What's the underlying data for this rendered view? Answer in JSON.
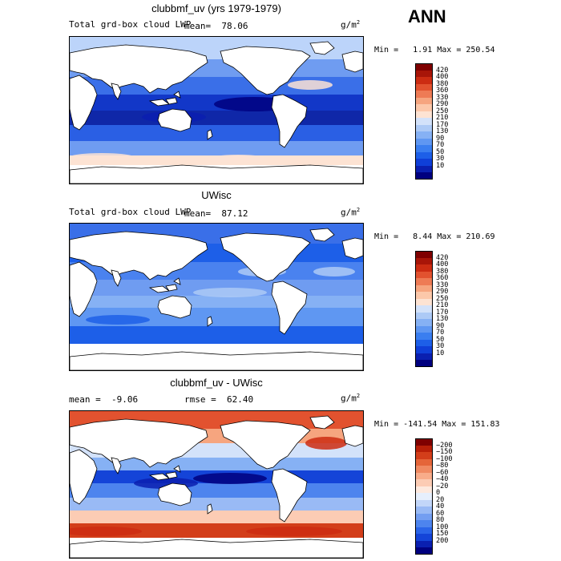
{
  "season": "ANN",
  "panels": [
    {
      "title": "clubbmf_uv (yrs 1979-1979)",
      "left_label": "Total grd-box cloud LWP",
      "stat_label": "mean=  78.06",
      "units_base": "g/m",
      "units_sup": "2",
      "minmax": "Min =   1.91 Max = 250.54",
      "palette": "model",
      "colorbar": {
        "colors": [
          "#00007f",
          "#0a1fb0",
          "#0f3fd8",
          "#1d5fe8",
          "#3a7ef0",
          "#5f97f2",
          "#86b1f4",
          "#adcaf6",
          "#d3e2fa",
          "#fde3d3",
          "#fcc8aa",
          "#f6a57f",
          "#ee7b55",
          "#e2522f",
          "#cc2c12",
          "#a81508",
          "#7f0000"
        ],
        "labels": [
          "10",
          "30",
          "50",
          "70",
          "90",
          "130",
          "170",
          "210",
          "250",
          "290",
          "330",
          "360",
          "380",
          "400",
          "420"
        ]
      }
    },
    {
      "title": "UWisc",
      "left_label": "Total grd-box cloud LWP",
      "stat_label": "mean=  87.12",
      "units_base": "g/m",
      "units_sup": "2",
      "minmax": "Min =   8.44 Max = 210.69",
      "palette": "obs",
      "colorbar": {
        "colors": [
          "#00007f",
          "#0a1fb0",
          "#0f3fd8",
          "#1d5fe8",
          "#3a7ef0",
          "#5f97f2",
          "#86b1f4",
          "#adcaf6",
          "#d3e2fa",
          "#fde3d3",
          "#fcc8aa",
          "#f6a57f",
          "#ee7b55",
          "#e2522f",
          "#cc2c12",
          "#a81508",
          "#7f0000"
        ],
        "labels": [
          "10",
          "30",
          "50",
          "70",
          "90",
          "130",
          "170",
          "210",
          "250",
          "290",
          "330",
          "360",
          "380",
          "400",
          "420"
        ]
      }
    },
    {
      "title": "clubbmf_uv - UWisc",
      "left_label": "mean =  -9.06",
      "stat_label": "rmse =  62.40",
      "units_base": "g/m",
      "units_sup": "2",
      "minmax": "Min = -141.54 Max = 151.83",
      "palette": "diff",
      "colorbar": {
        "colors": [
          "#00007f",
          "#0a1fb0",
          "#1444d8",
          "#2a64e8",
          "#4d84ee",
          "#739ef1",
          "#99baf5",
          "#c2d6f9",
          "#e6effc",
          "#fde9de",
          "#fcccb4",
          "#f8ac8a",
          "#f08a62",
          "#e56539",
          "#d33e1a",
          "#b81f08",
          "#7f0000"
        ],
        "labels": [
          "200",
          "150",
          "100",
          "80",
          "60",
          "40",
          "20",
          "0",
          "−20",
          "−40",
          "−60",
          "−80",
          "−100",
          "−150",
          "−200"
        ]
      }
    }
  ]
}
